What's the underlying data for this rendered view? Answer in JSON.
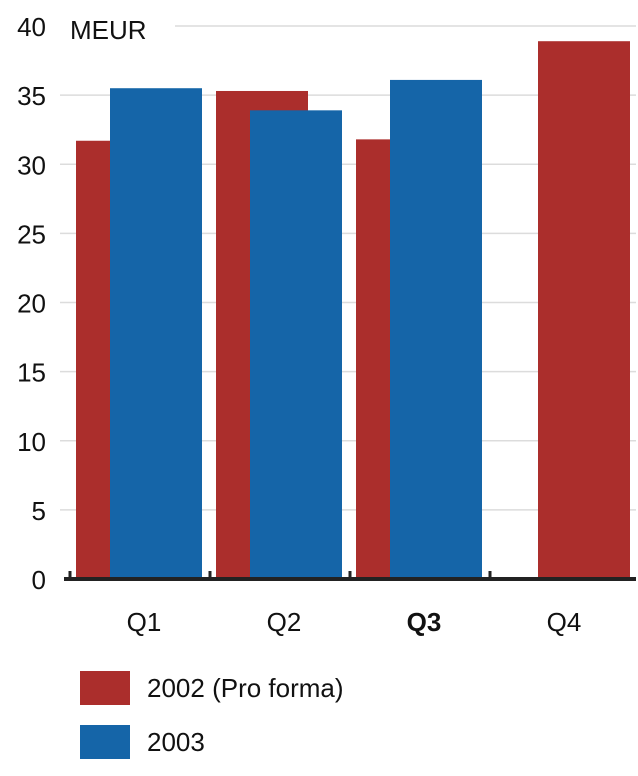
{
  "chart_data": {
    "type": "bar",
    "unit_label": "MEUR",
    "categories": [
      "Q1",
      "Q2",
      "Q3",
      "Q4"
    ],
    "highlight_category": "Q3",
    "series": [
      {
        "name": "2002 (Pro forma)",
        "values": [
          31.7,
          35.3,
          31.8,
          38.9
        ],
        "color": "#ab2e2c"
      },
      {
        "name": "2003",
        "values": [
          35.5,
          33.9,
          36.1,
          null
        ],
        "color": "#1565a8"
      }
    ],
    "ylim": [
      0,
      40
    ],
    "yticks": [
      0,
      5,
      10,
      15,
      20,
      25,
      30,
      35,
      40
    ],
    "grid": true,
    "legend_position": "bottom"
  }
}
